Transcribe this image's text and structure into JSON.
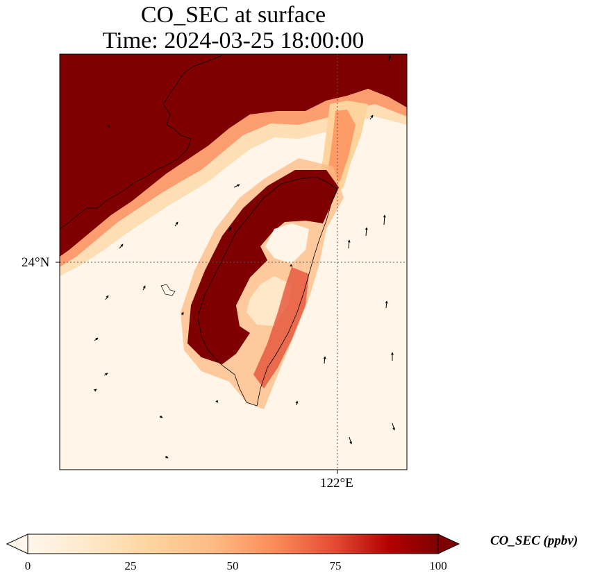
{
  "title": {
    "line1": "CO_SEC at surface",
    "line2": "Time: 2024-03-25 18:00:00"
  },
  "map": {
    "lat_label": "24°N",
    "lon_label": "122°E",
    "colormap": "OrRd",
    "colors": {
      "low": "#fff7ec",
      "mid": "#fdd49e",
      "high": "#e34a33",
      "max": "#7f0000",
      "gridline": "#555555"
    }
  },
  "colorbar": {
    "label": "CO_SEC (ppbv)",
    "ticks": [
      "0",
      "25",
      "50",
      "75",
      "100"
    ],
    "range": [
      0,
      100
    ],
    "extend": "both"
  }
}
